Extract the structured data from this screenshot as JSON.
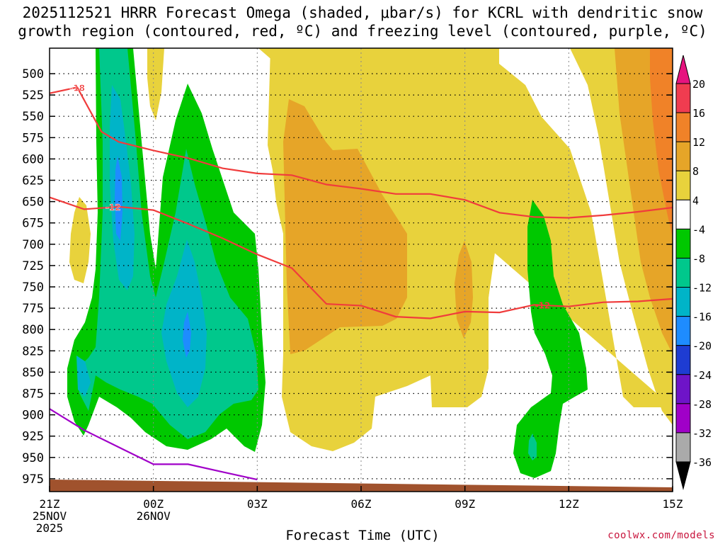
{
  "title_line1": "2025112521 HRRR Forecast Omega (shaded, μbar/s) for KCRL with dendritic snow",
  "title_line2": "growth region (contoured, red, ºC) and freezing level (contoured, purple, ºC)",
  "xlabel": "Forecast Time (UTC)",
  "credit": "coolwx.com/models",
  "chart_data": {
    "type": "time-height cross section (filled contour)",
    "variable": "Omega",
    "units": "μbar/s",
    "y_axis": {
      "label": "Pressure (hPa)",
      "range": [
        990,
        470
      ],
      "ticks": [
        "500",
        "525",
        "550",
        "575",
        "600",
        "625",
        "650",
        "675",
        "700",
        "725",
        "750",
        "775",
        "800",
        "825",
        "850",
        "875",
        "900",
        "925",
        "950",
        "975"
      ]
    },
    "x_axis": {
      "range_hours": [
        0,
        18
      ],
      "ticks": [
        {
          "hour": 0,
          "label": "21Z",
          "date": "25NOV",
          "year": "2025"
        },
        {
          "hour": 3,
          "label": "00Z",
          "date": "26NOV",
          "year": ""
        },
        {
          "hour": 6,
          "label": "03Z",
          "date": "",
          "year": ""
        },
        {
          "hour": 9,
          "label": "06Z",
          "date": "",
          "year": ""
        },
        {
          "hour": 12,
          "label": "09Z",
          "date": "",
          "year": ""
        },
        {
          "hour": 15,
          "label": "12Z",
          "date": "",
          "year": ""
        },
        {
          "hour": 18,
          "label": "15Z",
          "date": "",
          "year": ""
        }
      ]
    },
    "colorbar": {
      "labels": [
        "20",
        "16",
        "12",
        "8",
        "4",
        "-4",
        "-8",
        "-12",
        "-16",
        "-20",
        "-24",
        "-28",
        "-32",
        "-36"
      ],
      "levels": [
        {
          "range": "16 to 20",
          "color": "#f03c50"
        },
        {
          "range": "12 to 16",
          "color": "#f08228"
        },
        {
          "range": "8 to 12",
          "color": "#e6a528"
        },
        {
          "range": "4 to 8",
          "color": "#e8d23c"
        },
        {
          "range": "-4 to 4",
          "color": "#ffffff"
        },
        {
          "range": "-8 to -4",
          "color": "#00c800"
        },
        {
          "range": "-12 to -8",
          "color": "#00c88c"
        },
        {
          "range": "-16 to -12",
          "color": "#00b4c8"
        },
        {
          "range": "-20 to -16",
          "color": "#1e8cff"
        },
        {
          "range": "-24 to -20",
          "color": "#1e3cd2"
        },
        {
          "range": "-28 to -24",
          "color": "#6e14c8"
        },
        {
          "range": "-32 to -28",
          "color": "#a000c8"
        },
        {
          "range": "-36 to -32",
          "color": "#aaaaaa"
        }
      ],
      "top_extend_color": "#e6147f",
      "bottom_extend_color": "#000000"
    },
    "contours": [
      {
        "name": "isotherm -18",
        "label": "-18",
        "color": "#f03c3c",
        "points": [
          [
            0,
            523
          ],
          [
            0.8,
            516
          ],
          [
            1.5,
            568
          ],
          [
            2,
            580
          ],
          [
            3,
            590
          ],
          [
            4,
            599
          ],
          [
            5,
            611
          ],
          [
            6,
            617
          ],
          [
            7,
            619
          ],
          [
            8,
            630
          ],
          [
            9,
            635
          ],
          [
            10,
            641
          ],
          [
            11,
            641
          ],
          [
            12,
            648
          ],
          [
            13,
            663
          ],
          [
            14,
            668
          ],
          [
            15,
            669
          ],
          [
            16,
            666
          ],
          [
            17,
            662
          ],
          [
            18,
            657
          ]
        ]
      },
      {
        "name": "isotherm -12",
        "label": "-12",
        "color": "#f03c3c",
        "points": [
          [
            0,
            645
          ],
          [
            1,
            659
          ],
          [
            2,
            656
          ],
          [
            3,
            660
          ],
          [
            4,
            676
          ],
          [
            5,
            693
          ],
          [
            6,
            712
          ],
          [
            7,
            728
          ],
          [
            8,
            770
          ],
          [
            9,
            772
          ],
          [
            10,
            785
          ],
          [
            11,
            787
          ],
          [
            12,
            779
          ],
          [
            13,
            780
          ],
          [
            14,
            771
          ],
          [
            15,
            773
          ],
          [
            16,
            768
          ],
          [
            17,
            767
          ],
          [
            18,
            764
          ]
        ]
      },
      {
        "name": "freezing level 0",
        "label": "",
        "color": "#a000c8",
        "points": [
          [
            0,
            893
          ],
          [
            1,
            918
          ],
          [
            2,
            938
          ],
          [
            3,
            958
          ],
          [
            4,
            958
          ],
          [
            5,
            967
          ],
          [
            6,
            976
          ]
        ]
      }
    ],
    "terrain": {
      "color": "#a0522d",
      "surface_hPa_start": 975,
      "surface_hPa_end": 987
    }
  }
}
